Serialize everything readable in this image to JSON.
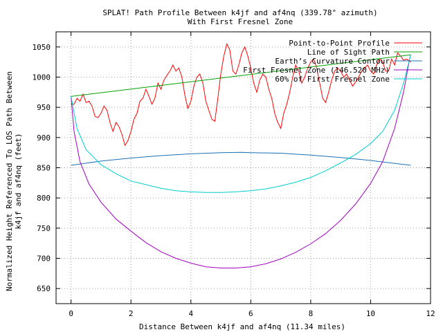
{
  "chart_data": {
    "type": "line",
    "title": "SPLAT! Path Profile Between k4jf and af4nq (339.78° azimuth)",
    "subtitle": "With First Fresnel Zone",
    "xlabel": "Distance Between k4jf and af4nq (11.34 miles)",
    "ylabel_line1": "Normalized Height Referenced To LOS Path Between",
    "ylabel_line2": "k4jf and af4nq (feet)",
    "xlim": [
      -0.5,
      12
    ],
    "ylim": [
      625,
      1075
    ],
    "xticks": [
      0,
      2,
      4,
      6,
      8,
      10,
      12
    ],
    "yticks": [
      650,
      700,
      750,
      800,
      850,
      900,
      950,
      1000,
      1050
    ],
    "grid": true,
    "legend_position": "top-right",
    "series": [
      {
        "name": "Point-to-Point Profile",
        "color": "#ff0000",
        "points": [
          [
            0,
            955
          ],
          [
            0.1,
            955
          ],
          [
            0.2,
            965
          ],
          [
            0.3,
            960
          ],
          [
            0.4,
            972
          ],
          [
            0.5,
            958
          ],
          [
            0.6,
            960
          ],
          [
            0.7,
            952
          ],
          [
            0.8,
            935
          ],
          [
            0.9,
            933
          ],
          [
            1.0,
            940
          ],
          [
            1.1,
            952
          ],
          [
            1.2,
            945
          ],
          [
            1.3,
            925
          ],
          [
            1.4,
            910
          ],
          [
            1.5,
            925
          ],
          [
            1.6,
            918
          ],
          [
            1.7,
            905
          ],
          [
            1.8,
            887
          ],
          [
            1.9,
            895
          ],
          [
            2.0,
            910
          ],
          [
            2.1,
            930
          ],
          [
            2.2,
            940
          ],
          [
            2.3,
            960
          ],
          [
            2.4,
            965
          ],
          [
            2.5,
            980
          ],
          [
            2.6,
            968
          ],
          [
            2.7,
            955
          ],
          [
            2.8,
            965
          ],
          [
            2.9,
            990
          ],
          [
            3.0,
            980
          ],
          [
            3.1,
            995
          ],
          [
            3.2,
            1003
          ],
          [
            3.3,
            1010
          ],
          [
            3.4,
            1020
          ],
          [
            3.5,
            1010
          ],
          [
            3.6,
            1015
          ],
          [
            3.7,
            1000
          ],
          [
            3.8,
            970
          ],
          [
            3.9,
            948
          ],
          [
            4.0,
            960
          ],
          [
            4.1,
            985
          ],
          [
            4.2,
            1000
          ],
          [
            4.3,
            1005
          ],
          [
            4.4,
            990
          ],
          [
            4.5,
            960
          ],
          [
            4.6,
            945
          ],
          [
            4.7,
            930
          ],
          [
            4.8,
            927
          ],
          [
            4.9,
            965
          ],
          [
            5.0,
            1005
          ],
          [
            5.1,
            1035
          ],
          [
            5.2,
            1055
          ],
          [
            5.3,
            1045
          ],
          [
            5.4,
            1010
          ],
          [
            5.5,
            1005
          ],
          [
            5.6,
            1020
          ],
          [
            5.7,
            1040
          ],
          [
            5.8,
            1050
          ],
          [
            5.9,
            1035
          ],
          [
            6.0,
            1015
          ],
          [
            6.1,
            990
          ],
          [
            6.2,
            975
          ],
          [
            6.3,
            995
          ],
          [
            6.4,
            1005
          ],
          [
            6.5,
            1000
          ],
          [
            6.6,
            980
          ],
          [
            6.7,
            965
          ],
          [
            6.8,
            940
          ],
          [
            6.9,
            925
          ],
          [
            7.0,
            915
          ],
          [
            7.1,
            940
          ],
          [
            7.2,
            955
          ],
          [
            7.3,
            975
          ],
          [
            7.4,
            1000
          ],
          [
            7.5,
            1020
          ],
          [
            7.6,
            1010
          ],
          [
            7.7,
            990
          ],
          [
            7.8,
            1000
          ],
          [
            7.9,
            1015
          ],
          [
            8.0,
            1025
          ],
          [
            8.1,
            1030
          ],
          [
            8.2,
            1015
          ],
          [
            8.3,
            990
          ],
          [
            8.4,
            965
          ],
          [
            8.5,
            958
          ],
          [
            8.6,
            975
          ],
          [
            8.7,
            995
          ],
          [
            8.8,
            1010
          ],
          [
            8.9,
            1015
          ],
          [
            9.0,
            1010
          ],
          [
            9.1,
            1000
          ],
          [
            9.2,
            1005
          ],
          [
            9.3,
            995
          ],
          [
            9.4,
            985
          ],
          [
            9.5,
            992
          ],
          [
            9.6,
            1000
          ],
          [
            9.7,
            1010
          ],
          [
            9.8,
            1015
          ],
          [
            9.9,
            1020
          ],
          [
            10.0,
            1010
          ],
          [
            10.1,
            1005
          ],
          [
            10.2,
            1020
          ],
          [
            10.3,
            1030
          ],
          [
            10.4,
            1025
          ],
          [
            10.5,
            1010
          ],
          [
            10.6,
            1010
          ],
          [
            10.7,
            1030
          ],
          [
            10.8,
            1020
          ],
          [
            10.9,
            1040
          ],
          [
            11.0,
            1035
          ],
          [
            11.1,
            1028
          ],
          [
            11.2,
            1030
          ],
          [
            11.34,
            1025
          ]
        ]
      },
      {
        "name": "Line of Sight Path",
        "color": "#00a000",
        "points": [
          [
            0,
            968
          ],
          [
            11.34,
            1037
          ]
        ]
      },
      {
        "name": "Earth’s Curvature Contour",
        "color": "#1a6fb3",
        "points": [
          [
            0,
            854
          ],
          [
            1,
            861
          ],
          [
            2,
            866
          ],
          [
            3,
            870
          ],
          [
            4,
            873
          ],
          [
            5,
            875
          ],
          [
            5.67,
            875.5
          ],
          [
            6,
            875
          ],
          [
            7,
            874
          ],
          [
            8,
            871
          ],
          [
            9,
            867
          ],
          [
            10,
            862
          ],
          [
            11,
            856
          ],
          [
            11.34,
            854
          ]
        ]
      },
      {
        "name": "First Fresnel Zone (146.520 MHz)",
        "color": "#a000c0",
        "points": [
          [
            0,
            968
          ],
          [
            0.1,
            910
          ],
          [
            0.3,
            860
          ],
          [
            0.6,
            823
          ],
          [
            1,
            793
          ],
          [
            1.5,
            765
          ],
          [
            2,
            745
          ],
          [
            2.5,
            726
          ],
          [
            3,
            711
          ],
          [
            3.5,
            700
          ],
          [
            4,
            692
          ],
          [
            4.5,
            686
          ],
          [
            5,
            684
          ],
          [
            5.5,
            684
          ],
          [
            6,
            686
          ],
          [
            6.5,
            691
          ],
          [
            7,
            699
          ],
          [
            7.5,
            710
          ],
          [
            8,
            724
          ],
          [
            8.5,
            741
          ],
          [
            9,
            763
          ],
          [
            9.5,
            790
          ],
          [
            10,
            824
          ],
          [
            10.4,
            860
          ],
          [
            10.8,
            915
          ],
          [
            11.1,
            975
          ],
          [
            11.3,
            1030
          ],
          [
            11.34,
            1037
          ]
        ]
      },
      {
        "name": "60% of First Fresnel Zone",
        "color": "#00cccc",
        "points": [
          [
            0,
            968
          ],
          [
            0.2,
            915
          ],
          [
            0.5,
            880
          ],
          [
            1,
            855
          ],
          [
            1.5,
            840
          ],
          [
            2,
            828
          ],
          [
            2.5,
            822
          ],
          [
            3,
            816
          ],
          [
            3.5,
            812
          ],
          [
            4,
            810
          ],
          [
            4.5,
            809
          ],
          [
            5,
            809
          ],
          [
            5.5,
            810
          ],
          [
            6,
            812
          ],
          [
            6.5,
            815
          ],
          [
            7,
            820
          ],
          [
            7.5,
            826
          ],
          [
            8,
            834
          ],
          [
            8.5,
            845
          ],
          [
            9,
            858
          ],
          [
            9.5,
            872
          ],
          [
            10,
            890
          ],
          [
            10.4,
            910
          ],
          [
            10.8,
            945
          ],
          [
            11.1,
            990
          ],
          [
            11.34,
            1037
          ]
        ]
      }
    ]
  }
}
